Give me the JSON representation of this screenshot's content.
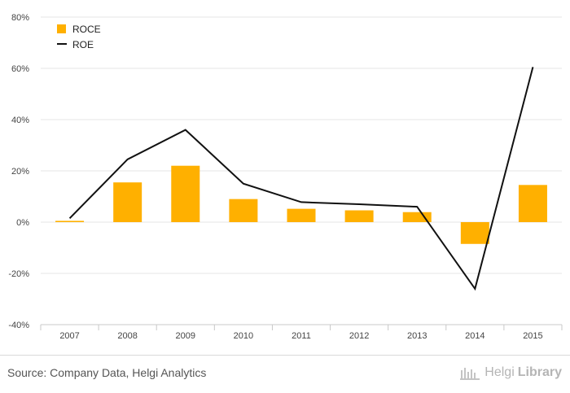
{
  "chart_data": {
    "type": "bar+line",
    "categories": [
      "2007",
      "2008",
      "2009",
      "2010",
      "2011",
      "2012",
      "2013",
      "2014",
      "2015"
    ],
    "series": [
      {
        "name": "ROCE",
        "type": "bar",
        "color": "#FFB000",
        "values": [
          0.5,
          15.5,
          22,
          9,
          5.2,
          4.6,
          3.9,
          -8.5,
          14.5
        ]
      },
      {
        "name": "ROE",
        "type": "line",
        "color": "#111111",
        "values": [
          1.5,
          24.5,
          36,
          15,
          7.8,
          7,
          6,
          -26,
          60.5
        ]
      }
    ],
    "ylim": [
      -40,
      80
    ],
    "yticks": [
      -40,
      -20,
      0,
      20,
      40,
      60,
      80
    ],
    "ytick_labels": [
      "-40%",
      "-20%",
      "0%",
      "20%",
      "40%",
      "60%",
      "80%"
    ],
    "grid": true,
    "legend": "top-left"
  },
  "footer": {
    "source": "Source: Company Data, Helgi Analytics",
    "brand_prefix": "Helgi",
    "brand_suffix": "Library"
  }
}
